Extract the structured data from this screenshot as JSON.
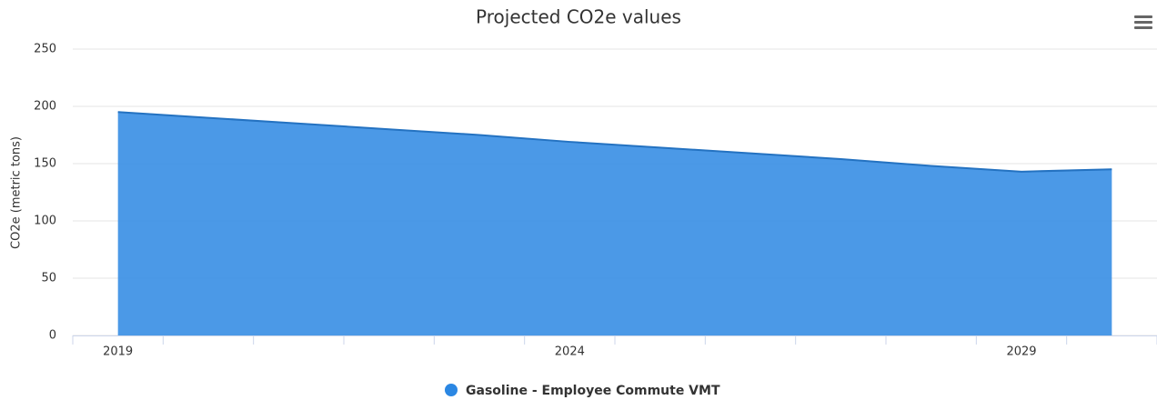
{
  "chart_data": {
    "type": "area",
    "title": "Projected CO2e values",
    "y_label": "CO2e (metric tons)",
    "categories": [
      "2019",
      null,
      null,
      null,
      null,
      "2024",
      null,
      null,
      null,
      null,
      "2029",
      null
    ],
    "series": [
      {
        "name": "Gasoline - Employee Commute VMT",
        "color": "#2b87e3",
        "values": [
          195,
          190,
          185,
          180,
          175,
          169,
          164,
          159,
          154,
          148,
          143,
          145
        ]
      }
    ],
    "ylim": [
      0,
      250
    ],
    "yticks": [
      0,
      50,
      100,
      150,
      200,
      250
    ],
    "grid": true,
    "legend": "bottom"
  }
}
